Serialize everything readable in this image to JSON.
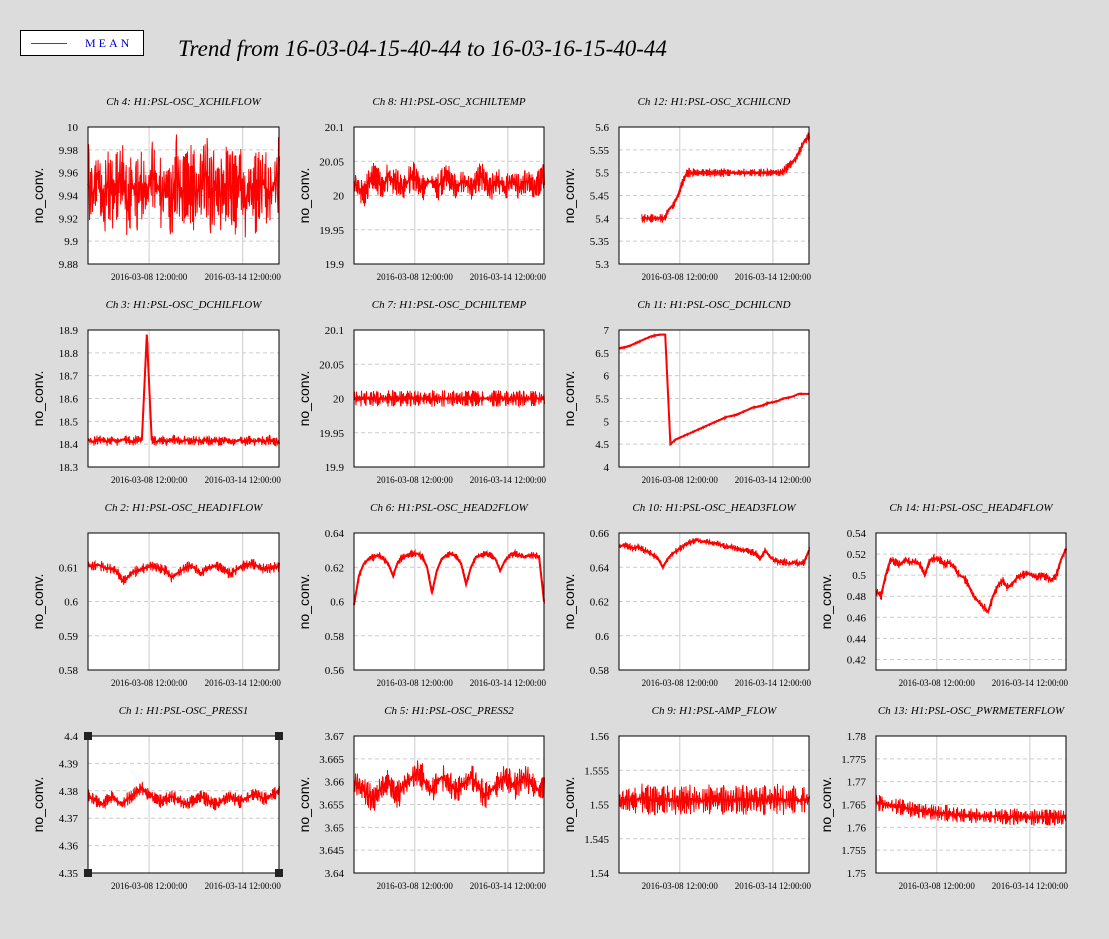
{
  "page": {
    "title": "Trend from 16-03-04-15-40-44 to 16-03-16-15-40-44",
    "legend": {
      "label": "MEAN",
      "color": "#ff0000"
    }
  },
  "chart_data": [
    {
      "type": "line",
      "title": "Ch 4: H1:PSL-OSC_XCHILFLOW",
      "ylabel": "no_conv.",
      "ylim": [
        9.88,
        10
      ],
      "yticks": [
        "10",
        "9.98",
        "9.96",
        "9.94",
        "9.92",
        "9.9",
        "9.88"
      ],
      "xticks": [
        "2016-03-08 12:00:00",
        "2016-03-14 12:00:00"
      ],
      "grid": true,
      "color": "#ff0000",
      "series": [
        {
          "values": [
            9.95,
            9.94,
            9.96,
            9.93,
            9.95,
            9.94,
            9.95,
            9.96,
            9.93,
            9.95,
            9.94,
            9.95,
            9.94,
            9.96,
            9.95,
            9.94,
            9.95,
            9.93,
            9.96,
            9.94,
            9.95,
            9.95,
            9.94,
            9.95,
            9.96,
            9.94,
            9.95,
            9.94,
            9.95,
            9.95,
            9.94,
            9.96,
            9.93,
            9.95,
            9.94,
            9.95,
            9.95,
            9.94,
            9.95,
            9.96
          ],
          "band": 0.035
        }
      ]
    },
    {
      "type": "line",
      "title": "Ch 8: H1:PSL-OSC_XCHILTEMP",
      "ylabel": "no_conv.",
      "ylim": [
        19.9,
        20.1
      ],
      "yticks": [
        "20.1",
        "20.05",
        "20",
        "19.95",
        "19.9"
      ],
      "xticks": [
        "2016-03-08 12:00:00",
        "2016-03-14 12:00:00"
      ],
      "grid": true,
      "color": "#ff0000",
      "series": [
        {
          "values": [
            20.02,
            20.01,
            20.0,
            20.02,
            20.03,
            20.02,
            20.01,
            20.03,
            20.02,
            20.02,
            20.01,
            20.02,
            20.03,
            20.02,
            20.01,
            20.02,
            20.02,
            20.01,
            20.02,
            20.03,
            20.02,
            20.01,
            20.02,
            20.02,
            20.01,
            20.02,
            20.03,
            20.02,
            20.01,
            20.02,
            20.02,
            20.01,
            20.02,
            20.02,
            20.01,
            20.02,
            20.02,
            20.01,
            20.02,
            20.03
          ],
          "band": 0.02
        }
      ]
    },
    {
      "type": "line",
      "title": "Ch 12: H1:PSL-OSC_XCHILCND",
      "ylabel": "no_conv.",
      "ylim": [
        5.3,
        5.6
      ],
      "yticks": [
        "5.6",
        "5.55",
        "5.5",
        "5.45",
        "5.4",
        "5.35",
        "5.3"
      ],
      "xticks": [
        "2016-03-08 12:00:00",
        "2016-03-14 12:00:00"
      ],
      "grid": true,
      "color": "#ff0000",
      "xstart": 0.12,
      "series": [
        {
          "values": [
            5.4,
            5.4,
            5.4,
            5.4,
            5.4,
            5.4,
            5.42,
            5.43,
            5.45,
            5.48,
            5.5,
            5.5,
            5.5,
            5.5,
            5.5,
            5.5,
            5.5,
            5.5,
            5.5,
            5.5,
            5.5,
            5.5,
            5.5,
            5.5,
            5.5,
            5.5,
            5.5,
            5.5,
            5.5,
            5.5,
            5.5,
            5.5,
            5.51,
            5.52,
            5.53,
            5.55,
            5.57,
            5.58
          ],
          "band": 0.01
        }
      ]
    },
    {
      "type": "line",
      "title": "Ch 3: H1:PSL-OSC_DCHILFLOW",
      "ylabel": "no_conv.",
      "ylim": [
        18.3,
        18.9
      ],
      "yticks": [
        "18.9",
        "18.8",
        "18.7",
        "18.6",
        "18.5",
        "18.4",
        "18.3"
      ],
      "xticks": [
        "2016-03-08 12:00:00",
        "2016-03-14 12:00:00"
      ],
      "grid": true,
      "color": "#ff0000",
      "series": [
        {
          "values": [
            18.42,
            18.41,
            18.42,
            18.42,
            18.41,
            18.42,
            18.41,
            18.42,
            18.42,
            18.41,
            18.42,
            18.42,
            18.88,
            18.42,
            18.41,
            18.42,
            18.41,
            18.42,
            18.42,
            18.41,
            18.42,
            18.41,
            18.42,
            18.41,
            18.42,
            18.41,
            18.42,
            18.41,
            18.42,
            18.41,
            18.41,
            18.42,
            18.41,
            18.42,
            18.41,
            18.42,
            18.41,
            18.42,
            18.41,
            18.41
          ],
          "band": 0.02
        }
      ]
    },
    {
      "type": "line",
      "title": "Ch 7: H1:PSL-OSC_DCHILTEMP",
      "ylabel": "no_conv.",
      "ylim": [
        19.9,
        20.1
      ],
      "yticks": [
        "20.1",
        "20.05",
        "20",
        "19.95",
        "19.9"
      ],
      "xticks": [
        "2016-03-08 12:00:00",
        "2016-03-14 12:00:00"
      ],
      "grid": true,
      "color": "#ff0000",
      "series": [
        {
          "values": [
            20.0,
            20.0,
            20.0,
            20.0,
            20.0,
            20.0,
            20.0,
            20.0,
            20.0,
            20.0,
            20.0,
            20.0,
            20.0,
            20.0,
            20.0,
            20.0,
            20.0,
            20.0,
            20.0,
            20.0,
            20.0,
            20.0,
            20.0,
            20.0,
            20.0,
            20.0,
            20.0,
            20.0,
            20.0,
            20.0,
            20.0,
            20.0,
            20.0,
            20.0,
            20.0,
            20.0,
            20.0,
            20.0,
            20.0,
            20.0
          ],
          "band": 0.012
        }
      ]
    },
    {
      "type": "line",
      "title": "Ch 11: H1:PSL-OSC_DCHILCND",
      "ylabel": "no_conv.",
      "ylim": [
        4,
        7
      ],
      "yticks": [
        "7",
        "6.5",
        "6",
        "5.5",
        "5",
        "4.5",
        "4"
      ],
      "xticks": [
        "2016-03-08 12:00:00",
        "2016-03-14 12:00:00"
      ],
      "grid": true,
      "color": "#ff0000",
      "series": [
        {
          "values": [
            6.6,
            6.62,
            6.65,
            6.7,
            6.75,
            6.8,
            6.85,
            6.88,
            6.9,
            6.9,
            4.5,
            4.6,
            4.65,
            4.7,
            4.75,
            4.8,
            4.85,
            4.9,
            4.95,
            5.0,
            5.05,
            5.1,
            5.12,
            5.15,
            5.2,
            5.25,
            5.3,
            5.32,
            5.35,
            5.4,
            5.42,
            5.45,
            5.5,
            5.52,
            5.55,
            5.6,
            5.6,
            5.6
          ],
          "band": 0.02
        }
      ]
    },
    {
      "type": "line",
      "title": "Ch 2: H1:PSL-OSC_HEAD1FLOW",
      "ylabel": "no_conv.",
      "ylim": [
        0.58,
        0.62
      ],
      "yticks": [
        "0.61",
        "0.6",
        "0.59",
        "0.58"
      ],
      "ytickvals": [
        0.61,
        0.6,
        0.59,
        0.58
      ],
      "xticks": [
        "2016-03-08 12:00:00",
        "2016-03-14 12:00:00"
      ],
      "grid": true,
      "color": "#ff0000",
      "series": [
        {
          "values": [
            0.6105,
            0.6102,
            0.6108,
            0.6101,
            0.6097,
            0.6095,
            0.6085,
            0.606,
            0.607,
            0.6085,
            0.609,
            0.6095,
            0.61,
            0.6105,
            0.61,
            0.6095,
            0.609,
            0.607,
            0.608,
            0.609,
            0.61,
            0.6105,
            0.6095,
            0.608,
            0.6095,
            0.61,
            0.6105,
            0.61,
            0.609,
            0.608,
            0.609,
            0.61,
            0.6105,
            0.611,
            0.6108,
            0.61,
            0.6095,
            0.6098,
            0.61,
            0.6102
          ],
          "band": 0.0015
        }
      ]
    },
    {
      "type": "line",
      "title": "Ch 6: H1:PSL-OSC_HEAD2FLOW",
      "ylabel": "no_conv.",
      "ylim": [
        0.56,
        0.64
      ],
      "yticks": [
        "0.64",
        "0.62",
        "0.6",
        "0.58",
        "0.56"
      ],
      "xticks": [
        "2016-03-08 12:00:00",
        "2016-03-14 12:00:00"
      ],
      "grid": true,
      "color": "#ff0000",
      "series": [
        {
          "values": [
            0.598,
            0.615,
            0.622,
            0.625,
            0.626,
            0.627,
            0.625,
            0.622,
            0.615,
            0.623,
            0.626,
            0.627,
            0.628,
            0.628,
            0.626,
            0.62,
            0.605,
            0.618,
            0.625,
            0.627,
            0.628,
            0.626,
            0.622,
            0.61,
            0.62,
            0.626,
            0.627,
            0.628,
            0.627,
            0.625,
            0.618,
            0.624,
            0.627,
            0.628,
            0.627,
            0.626,
            0.627,
            0.627,
            0.626,
            0.6
          ],
          "band": 0.002
        }
      ]
    },
    {
      "type": "line",
      "title": "Ch 10: H1:PSL-OSC_HEAD3FLOW",
      "ylabel": "no_conv.",
      "ylim": [
        0.58,
        0.66
      ],
      "yticks": [
        "0.66",
        "0.64",
        "0.62",
        "0.6",
        "0.58"
      ],
      "xticks": [
        "2016-03-08 12:00:00",
        "2016-03-14 12:00:00"
      ],
      "grid": true,
      "color": "#ff0000",
      "series": [
        {
          "values": [
            0.652,
            0.653,
            0.652,
            0.651,
            0.652,
            0.65,
            0.649,
            0.647,
            0.645,
            0.64,
            0.645,
            0.648,
            0.65,
            0.652,
            0.654,
            0.655,
            0.656,
            0.655,
            0.655,
            0.654,
            0.654,
            0.653,
            0.652,
            0.652,
            0.651,
            0.65,
            0.65,
            0.649,
            0.648,
            0.645,
            0.65,
            0.646,
            0.644,
            0.643,
            0.643,
            0.642,
            0.643,
            0.642,
            0.643,
            0.65
          ],
          "band": 0.002
        }
      ]
    },
    {
      "type": "line",
      "title": "Ch 14: H1:PSL-OSC_HEAD4FLOW",
      "ylabel": "no_conv.",
      "ylim": [
        0.41,
        0.54
      ],
      "yticks": [
        "0.54",
        "0.52",
        "0.5",
        "0.48",
        "0.46",
        "0.44",
        "0.42"
      ],
      "ytickvals": [
        0.54,
        0.52,
        0.5,
        0.48,
        0.46,
        0.44,
        0.42
      ],
      "xticks": [
        "2016-03-08 12:00:00",
        "2016-03-14 12:00:00"
      ],
      "grid": true,
      "color": "#ff0000",
      "series": [
        {
          "values": [
            0.485,
            0.48,
            0.5,
            0.515,
            0.512,
            0.51,
            0.515,
            0.512,
            0.513,
            0.51,
            0.5,
            0.514,
            0.516,
            0.515,
            0.51,
            0.512,
            0.508,
            0.5,
            0.498,
            0.49,
            0.48,
            0.475,
            0.47,
            0.465,
            0.48,
            0.49,
            0.495,
            0.488,
            0.492,
            0.498,
            0.5,
            0.502,
            0.5,
            0.498,
            0.5,
            0.498,
            0.495,
            0.5,
            0.515,
            0.525
          ],
          "band": 0.004
        }
      ]
    },
    {
      "type": "line",
      "title": "Ch 1: H1:PSL-OSC_PRESS1",
      "ylabel": "no_conv.",
      "ylim": [
        4.35,
        4.4
      ],
      "yticks": [
        "4.4",
        "4.39",
        "4.38",
        "4.37",
        "4.36",
        "4.35"
      ],
      "xticks": [
        "2016-03-08 12:00:00",
        "2016-03-14 12:00:00"
      ],
      "grid": true,
      "color": "#ff0000",
      "selected": true,
      "series": [
        {
          "values": [
            4.378,
            4.377,
            4.376,
            4.375,
            4.377,
            4.378,
            4.376,
            4.375,
            4.377,
            4.378,
            4.38,
            4.381,
            4.379,
            4.378,
            4.377,
            4.376,
            4.377,
            4.378,
            4.377,
            4.376,
            4.375,
            4.376,
            4.377,
            4.378,
            4.377,
            4.376,
            4.375,
            4.376,
            4.377,
            4.378,
            4.377,
            4.376,
            4.377,
            4.378,
            4.379,
            4.378,
            4.377,
            4.378,
            4.379,
            4.38
          ],
          "band": 0.0025
        }
      ]
    },
    {
      "type": "line",
      "title": "Ch 5: H1:PSL-OSC_PRESS2",
      "ylabel": "no_conv.",
      "ylim": [
        3.64,
        3.67
      ],
      "yticks": [
        "3.67",
        "3.665",
        "3.66",
        "3.655",
        "3.65",
        "3.645",
        "3.64"
      ],
      "xticks": [
        "2016-03-08 12:00:00",
        "2016-03-14 12:00:00"
      ],
      "grid": true,
      "color": "#ff0000",
      "series": [
        {
          "values": [
            3.66,
            3.659,
            3.658,
            3.657,
            3.656,
            3.658,
            3.659,
            3.66,
            3.658,
            3.657,
            3.659,
            3.66,
            3.661,
            3.662,
            3.661,
            3.659,
            3.658,
            3.66,
            3.661,
            3.66,
            3.659,
            3.658,
            3.659,
            3.66,
            3.661,
            3.66,
            3.658,
            3.657,
            3.658,
            3.659,
            3.66,
            3.661,
            3.66,
            3.659,
            3.66,
            3.661,
            3.66,
            3.659,
            3.658,
            3.659
          ],
          "band": 0.003
        }
      ]
    },
    {
      "type": "line",
      "title": "Ch 9: H1:PSL-AMP_FLOW",
      "ylabel": "no_conv.",
      "ylim": [
        1.54,
        1.56
      ],
      "yticks": [
        "1.56",
        "1.555",
        "1.55",
        "1.545",
        "1.54"
      ],
      "xticks": [
        "2016-03-08 12:00:00",
        "2016-03-14 12:00:00"
      ],
      "grid": true,
      "color": "#ff0000",
      "series": [
        {
          "values": [
            1.5505,
            1.5506,
            1.5507,
            1.5505,
            1.5508,
            1.551,
            1.5507,
            1.5506,
            1.5505,
            1.5507,
            1.5508,
            1.5506,
            1.5505,
            1.5506,
            1.5507,
            1.5508,
            1.5506,
            1.5505,
            1.5507,
            1.5508,
            1.5509,
            1.5507,
            1.5506,
            1.5505,
            1.5507,
            1.5508,
            1.5506,
            1.5507,
            1.5508,
            1.5507,
            1.5506,
            1.5508,
            1.5509,
            1.5507,
            1.5506,
            1.5508,
            1.5507,
            1.5506,
            1.5507,
            1.5508
          ],
          "band": 0.0022
        }
      ]
    },
    {
      "type": "line",
      "title": "Ch 13: H1:PSL-OSC_PWRMETERFLOW",
      "ylabel": "no_conv.",
      "ylim": [
        1.75,
        1.78
      ],
      "yticks": [
        "1.78",
        "1.775",
        "1.77",
        "1.765",
        "1.76",
        "1.755",
        "1.75"
      ],
      "xticks": [
        "2016-03-08 12:00:00",
        "2016-03-14 12:00:00"
      ],
      "grid": true,
      "color": "#ff0000",
      "series": [
        {
          "values": [
            1.7655,
            1.7652,
            1.765,
            1.7648,
            1.7646,
            1.7645,
            1.7643,
            1.764,
            1.7638,
            1.7636,
            1.7635,
            1.7634,
            1.7632,
            1.763,
            1.7632,
            1.763,
            1.7628,
            1.7627,
            1.7626,
            1.7625,
            1.7626,
            1.7625,
            1.7624,
            1.7623,
            1.7624,
            1.7625,
            1.7623,
            1.7622,
            1.7623,
            1.7624,
            1.7623,
            1.7622,
            1.7621,
            1.7622,
            1.7623,
            1.7622,
            1.7621,
            1.7622,
            1.7622,
            1.7621
          ],
          "band": 0.0018
        }
      ]
    }
  ]
}
